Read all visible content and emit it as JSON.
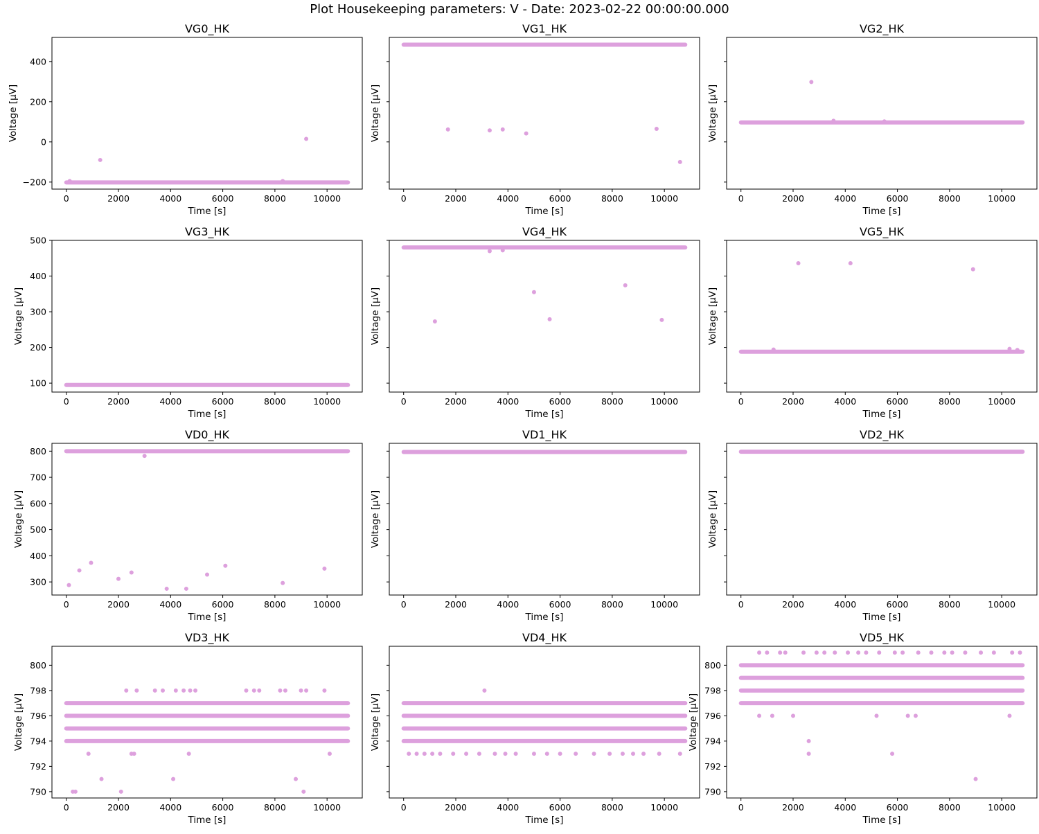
{
  "figure": {
    "title": "Plot Housekeeping parameters: V - Date: 2023-02-22 00:00:00.000",
    "marker_color": "#dda0dd"
  },
  "chart_data": [
    {
      "type": "scatter",
      "title": "VG0_HK",
      "xlabel": "Time [s]",
      "ylabel": "Voltage [μV]",
      "xlim": [
        -550,
        11350
      ],
      "ylim": [
        -235,
        520
      ],
      "xticks": [
        0,
        2000,
        4000,
        6000,
        8000,
        10000
      ],
      "yticks": [
        -200,
        0,
        200,
        400
      ],
      "show_ytick_labels": true,
      "bands": [
        {
          "y": -202,
          "x0": 0,
          "x1": 10800
        }
      ],
      "points": [
        [
          130,
          -195
        ],
        [
          1300,
          -90
        ],
        [
          8300,
          -195
        ],
        [
          9200,
          15
        ]
      ]
    },
    {
      "type": "scatter",
      "title": "VG1_HK",
      "xlabel": "Time [s]",
      "ylabel": "Voltage [μV]",
      "xlim": [
        -550,
        11350
      ],
      "ylim": [
        -235,
        520
      ],
      "xticks": [
        0,
        2000,
        4000,
        6000,
        8000,
        10000
      ],
      "yticks": [
        -200,
        0,
        200,
        400
      ],
      "show_ytick_labels": false,
      "bands": [
        {
          "y": 484,
          "x0": 0,
          "x1": 10800
        }
      ],
      "points": [
        [
          1700,
          62
        ],
        [
          3300,
          57
        ],
        [
          3800,
          62
        ],
        [
          4700,
          42
        ],
        [
          9700,
          65
        ],
        [
          10600,
          -100
        ]
      ]
    },
    {
      "type": "scatter",
      "title": "VG2_HK",
      "xlabel": "Time [s]",
      "ylabel": "Voltage [μV]",
      "xlim": [
        -550,
        11350
      ],
      "ylim": [
        -235,
        520
      ],
      "xticks": [
        0,
        2000,
        4000,
        6000,
        8000,
        10000
      ],
      "yticks": [
        -200,
        0,
        200,
        400
      ],
      "show_ytick_labels": false,
      "bands": [
        {
          "y": 97,
          "x0": 0,
          "x1": 10800
        }
      ],
      "points": [
        [
          2700,
          298
        ],
        [
          3550,
          105
        ],
        [
          5500,
          102
        ]
      ]
    },
    {
      "type": "scatter",
      "title": "VG3_HK",
      "xlabel": "Time [s]",
      "ylabel": "Voltage [μV]",
      "xlim": [
        -550,
        11350
      ],
      "ylim": [
        75,
        500
      ],
      "xticks": [
        0,
        2000,
        4000,
        6000,
        8000,
        10000
      ],
      "yticks": [
        100,
        200,
        300,
        400,
        500
      ],
      "show_ytick_labels": true,
      "bands": [
        {
          "y": 95,
          "x0": 0,
          "x1": 10800
        }
      ],
      "points": []
    },
    {
      "type": "scatter",
      "title": "VG4_HK",
      "xlabel": "Time [s]",
      "ylabel": "Voltage [μV]",
      "xlim": [
        -550,
        11350
      ],
      "ylim": [
        75,
        500
      ],
      "xticks": [
        0,
        2000,
        4000,
        6000,
        8000,
        10000
      ],
      "yticks": [
        100,
        200,
        300,
        400,
        500
      ],
      "show_ytick_labels": false,
      "bands": [
        {
          "y": 480,
          "x0": 0,
          "x1": 10800
        }
      ],
      "points": [
        [
          1200,
          273
        ],
        [
          3300,
          470
        ],
        [
          3800,
          472
        ],
        [
          5000,
          355
        ],
        [
          5600,
          279
        ],
        [
          8500,
          374
        ],
        [
          9900,
          277
        ]
      ]
    },
    {
      "type": "scatter",
      "title": "VG5_HK",
      "xlabel": "Time [s]",
      "ylabel": "Voltage [μV]",
      "xlim": [
        -550,
        11350
      ],
      "ylim": [
        75,
        500
      ],
      "xticks": [
        0,
        2000,
        4000,
        6000,
        8000,
        10000
      ],
      "yticks": [
        100,
        200,
        300,
        400,
        500
      ],
      "show_ytick_labels": false,
      "bands": [
        {
          "y": 188,
          "x0": 0,
          "x1": 10800
        }
      ],
      "points": [
        [
          1250,
          194
        ],
        [
          2200,
          436
        ],
        [
          4200,
          436
        ],
        [
          8900,
          419
        ],
        [
          10300,
          196
        ],
        [
          10600,
          193
        ]
      ]
    },
    {
      "type": "scatter",
      "title": "VD0_HK",
      "xlabel": "Time [s]",
      "ylabel": "Voltage [μV]",
      "xlim": [
        -550,
        11350
      ],
      "ylim": [
        250,
        830
      ],
      "xticks": [
        0,
        2000,
        4000,
        6000,
        8000,
        10000
      ],
      "yticks": [
        300,
        400,
        500,
        600,
        700,
        800
      ],
      "show_ytick_labels": true,
      "bands": [
        {
          "y": 800,
          "x0": 0,
          "x1": 10800
        }
      ],
      "points": [
        [
          100,
          288
        ],
        [
          500,
          344
        ],
        [
          950,
          373
        ],
        [
          2000,
          312
        ],
        [
          2500,
          336
        ],
        [
          3000,
          782
        ],
        [
          3850,
          274
        ],
        [
          4600,
          274
        ],
        [
          5400,
          328
        ],
        [
          6100,
          362
        ],
        [
          8300,
          296
        ],
        [
          9900,
          351
        ]
      ]
    },
    {
      "type": "scatter",
      "title": "VD1_HK",
      "xlabel": "Time [s]",
      "ylabel": "Voltage [μV]",
      "xlim": [
        -550,
        11350
      ],
      "ylim": [
        250,
        830
      ],
      "xticks": [
        0,
        2000,
        4000,
        6000,
        8000,
        10000
      ],
      "yticks": [
        300,
        400,
        500,
        600,
        700,
        800
      ],
      "show_ytick_labels": false,
      "bands": [
        {
          "y": 797,
          "x0": 0,
          "x1": 10800
        }
      ],
      "points": []
    },
    {
      "type": "scatter",
      "title": "VD2_HK",
      "xlabel": "Time [s]",
      "ylabel": "Voltage [μV]",
      "xlim": [
        -550,
        11350
      ],
      "ylim": [
        250,
        830
      ],
      "xticks": [
        0,
        2000,
        4000,
        6000,
        8000,
        10000
      ],
      "yticks": [
        300,
        400,
        500,
        600,
        700,
        800
      ],
      "show_ytick_labels": false,
      "bands": [
        {
          "y": 798,
          "x0": 0,
          "x1": 10800
        }
      ],
      "points": []
    },
    {
      "type": "scatter",
      "title": "VD3_HK",
      "xlabel": "Time [s]",
      "ylabel": "Voltage [μV]",
      "xlim": [
        -550,
        11350
      ],
      "ylim": [
        789.5,
        801.5
      ],
      "xticks": [
        0,
        2000,
        4000,
        6000,
        8000,
        10000
      ],
      "yticks": [
        790,
        792,
        794,
        796,
        798,
        800
      ],
      "show_ytick_labels": true,
      "bands": [
        {
          "y": 797,
          "x0": 0,
          "x1": 10800
        },
        {
          "y": 796,
          "x0": 0,
          "x1": 10800
        },
        {
          "y": 795,
          "x0": 0,
          "x1": 10800
        },
        {
          "y": 794,
          "x0": 0,
          "x1": 10800
        }
      ],
      "points": [
        [
          250,
          790
        ],
        [
          350,
          790
        ],
        [
          850,
          793
        ],
        [
          1350,
          791
        ],
        [
          2100,
          790
        ],
        [
          2300,
          798
        ],
        [
          2500,
          793
        ],
        [
          2600,
          793
        ],
        [
          2700,
          798
        ],
        [
          3400,
          798
        ],
        [
          3700,
          798
        ],
        [
          4100,
          791
        ],
        [
          4200,
          798
        ],
        [
          4500,
          798
        ],
        [
          4700,
          793
        ],
        [
          4750,
          798
        ],
        [
          4950,
          798
        ],
        [
          6900,
          798
        ],
        [
          7200,
          798
        ],
        [
          7400,
          798
        ],
        [
          8200,
          798
        ],
        [
          8400,
          798
        ],
        [
          8800,
          791
        ],
        [
          9000,
          798
        ],
        [
          9100,
          790
        ],
        [
          9200,
          798
        ],
        [
          9900,
          798
        ],
        [
          10100,
          793
        ]
      ]
    },
    {
      "type": "scatter",
      "title": "VD4_HK",
      "xlabel": "Time [s]",
      "ylabel": "Voltage [μV]",
      "xlim": [
        -550,
        11350
      ],
      "ylim": [
        789.5,
        801.5
      ],
      "xticks": [
        0,
        2000,
        4000,
        6000,
        8000,
        10000
      ],
      "yticks": [
        790,
        792,
        794,
        796,
        798,
        800
      ],
      "show_ytick_labels": false,
      "bands": [
        {
          "y": 797,
          "x0": 0,
          "x1": 10800
        },
        {
          "y": 796,
          "x0": 0,
          "x1": 10800
        },
        {
          "y": 795,
          "x0": 0,
          "x1": 10800
        },
        {
          "y": 794,
          "x0": 0,
          "x1": 10800
        }
      ],
      "points": [
        [
          3100,
          798
        ],
        [
          200,
          793
        ],
        [
          500,
          793
        ],
        [
          800,
          793
        ],
        [
          1100,
          793
        ],
        [
          1400,
          793
        ],
        [
          1900,
          793
        ],
        [
          2400,
          793
        ],
        [
          2900,
          793
        ],
        [
          3500,
          793
        ],
        [
          3900,
          793
        ],
        [
          4300,
          793
        ],
        [
          5000,
          793
        ],
        [
          5500,
          793
        ],
        [
          6000,
          793
        ],
        [
          6600,
          793
        ],
        [
          7300,
          793
        ],
        [
          7900,
          793
        ],
        [
          8400,
          793
        ],
        [
          8800,
          793
        ],
        [
          9200,
          793
        ],
        [
          9800,
          793
        ],
        [
          10600,
          793
        ]
      ]
    },
    {
      "type": "scatter",
      "title": "VD5_HK",
      "xlabel": "Time [s]",
      "ylabel": "Voltage [μV]",
      "xlim": [
        -550,
        11350
      ],
      "ylim": [
        789.5,
        801.5
      ],
      "xticks": [
        0,
        2000,
        4000,
        6000,
        8000,
        10000
      ],
      "yticks": [
        790,
        792,
        794,
        796,
        798,
        800
      ],
      "show_ytick_labels": true,
      "bands": [
        {
          "y": 800,
          "x0": 0,
          "x1": 10800
        },
        {
          "y": 799,
          "x0": 0,
          "x1": 10800
        },
        {
          "y": 798,
          "x0": 0,
          "x1": 10800
        },
        {
          "y": 797,
          "x0": 0,
          "x1": 10800
        }
      ],
      "points": [
        [
          700,
          801
        ],
        [
          1000,
          801
        ],
        [
          1500,
          801
        ],
        [
          1700,
          801
        ],
        [
          2400,
          801
        ],
        [
          2900,
          801
        ],
        [
          3200,
          801
        ],
        [
          3600,
          801
        ],
        [
          4100,
          801
        ],
        [
          4500,
          801
        ],
        [
          4800,
          801
        ],
        [
          5300,
          801
        ],
        [
          5900,
          801
        ],
        [
          6200,
          801
        ],
        [
          6800,
          801
        ],
        [
          7300,
          801
        ],
        [
          7800,
          801
        ],
        [
          8100,
          801
        ],
        [
          8600,
          801
        ],
        [
          9200,
          801
        ],
        [
          9700,
          801
        ],
        [
          10400,
          801
        ],
        [
          10700,
          801
        ],
        [
          700,
          796
        ],
        [
          1200,
          796
        ],
        [
          2000,
          796
        ],
        [
          5200,
          796
        ],
        [
          6400,
          796
        ],
        [
          6700,
          796
        ],
        [
          10300,
          796
        ],
        [
          2600,
          794
        ],
        [
          2600,
          793
        ],
        [
          5800,
          793
        ],
        [
          9000,
          791
        ]
      ]
    }
  ]
}
